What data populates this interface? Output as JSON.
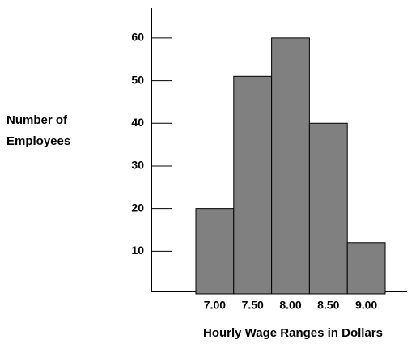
{
  "chart_data": {
    "type": "bar",
    "y_label": [
      "Number of",
      "Employees"
    ],
    "x_label": "Hourly Wage Ranges in Dollars",
    "categories": [
      "7.00",
      "7.50",
      "8.00",
      "8.50",
      "9.00"
    ],
    "values": [
      20,
      51,
      60,
      40,
      12
    ],
    "color": "#808080",
    "ylim": [
      0,
      67
    ],
    "yticks": [
      10,
      20,
      30,
      40,
      50,
      60
    ]
  }
}
